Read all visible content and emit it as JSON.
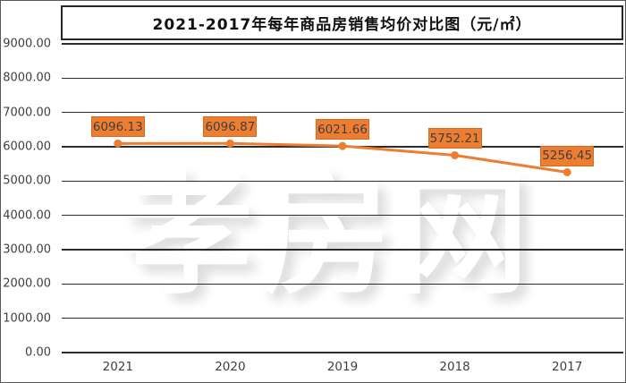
{
  "header": {
    "title": "2021-2017年每年商品房销售均价对比图（元/㎡）"
  },
  "watermark": {
    "text": "孝房网"
  },
  "colors": {
    "accent_orange": "#ED7D31",
    "accent_orange_border": "#D86A1D",
    "grid_line": "#2B2B2B",
    "axis_text": "#404040",
    "data_label_text": "#404040",
    "frame_border": "#595959",
    "background": "#FFFFFF"
  },
  "chart_data": {
    "type": "line",
    "title": "2021-2017年每年商品房销售均价对比图（元/㎡）",
    "unit": "元/㎡",
    "categories": [
      "2021",
      "2020",
      "2019",
      "2018",
      "2017"
    ],
    "values": [
      6096.13,
      6096.87,
      6021.66,
      5752.21,
      5256.45
    ],
    "point_labels": [
      "6096.13",
      "6096.87",
      "6021.66",
      "5752.21",
      "5256.45"
    ],
    "series_color": "#ED7D31",
    "xlabel": "",
    "ylabel": "",
    "ylim": [
      0,
      9000
    ],
    "ytick_values": [
      0,
      1000,
      2000,
      3000,
      4000,
      5000,
      6000,
      7000,
      8000,
      9000
    ],
    "ytick_labels": [
      "0.00",
      "1000.00",
      "2000.00",
      "3000.00",
      "4000.00",
      "5000.00",
      "6000.00",
      "7000.00",
      "8000.00",
      "9000.00"
    ],
    "grid": true,
    "legend": "none",
    "marker": "circle"
  }
}
